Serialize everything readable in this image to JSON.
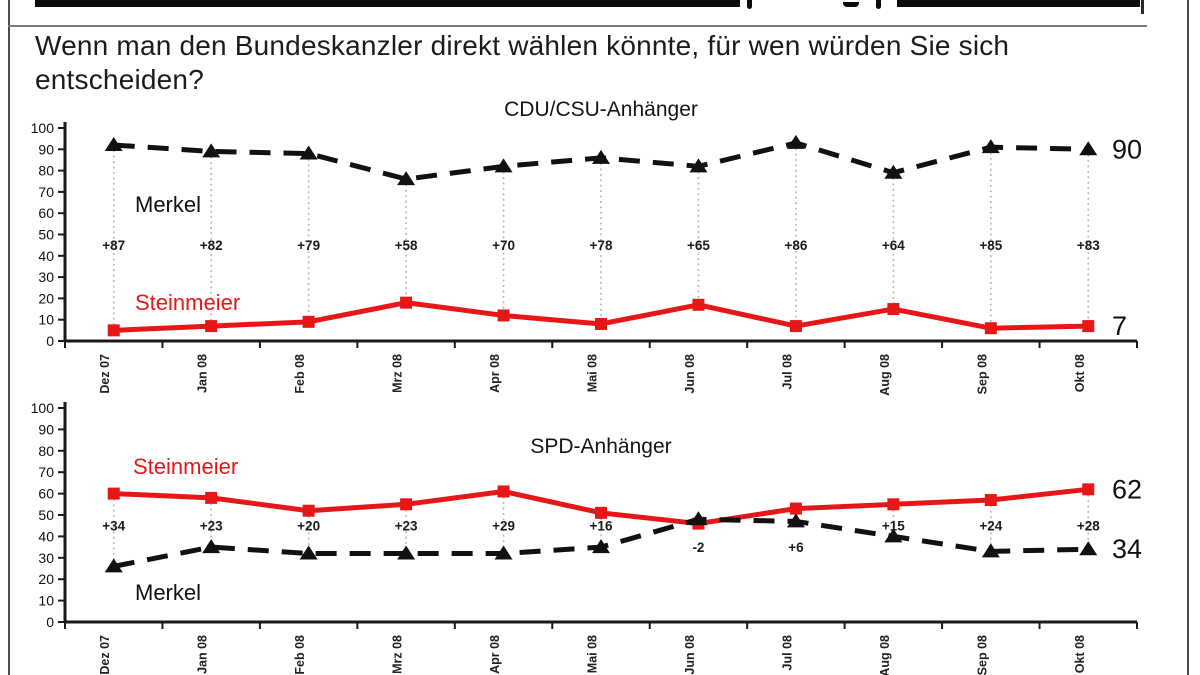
{
  "header": {
    "question": "Wenn man den Bundeskanzler direkt wählen könnte, für wen würden Sie sich entscheiden?"
  },
  "colors": {
    "steinmeier_red": "#e81717",
    "merkel_black": "#111111",
    "guide_gray": "#b3b3b3",
    "axis_black": "#1a1a1a"
  },
  "chart_data": [
    {
      "id": "cdu-csu",
      "type": "line",
      "title": "CDU/CSU-Anhänger",
      "categories": [
        "Dez 07",
        "Jan 08",
        "Feb 08",
        "Mrz 08",
        "Apr 08",
        "Mai 08",
        "Jun 08",
        "Jul 08",
        "Aug 08",
        "Sep 08",
        "Okt 08"
      ],
      "ylim": [
        0,
        100
      ],
      "yticks": [
        0,
        10,
        20,
        30,
        40,
        50,
        60,
        70,
        80,
        90,
        100
      ],
      "grid": false,
      "legend": "inline-labels",
      "series": [
        {
          "name": "Merkel",
          "color": "#111111",
          "line_style": "dashed",
          "marker": "triangle",
          "values": [
            92,
            89,
            88,
            76,
            82,
            86,
            82,
            93,
            79,
            91,
            90
          ],
          "end_label": "90"
        },
        {
          "name": "Steinmeier",
          "color": "#e81717",
          "line_style": "solid",
          "marker": "square",
          "values": [
            5,
            7,
            9,
            18,
            12,
            8,
            17,
            7,
            15,
            6,
            7
          ],
          "end_label": "7"
        }
      ],
      "diff_labels": [
        "+87",
        "+82",
        "+79",
        "+58",
        "+70",
        "+78",
        "+65",
        "+86",
        "+64",
        "+85",
        "+83"
      ]
    },
    {
      "id": "spd",
      "type": "line",
      "title": "SPD-Anhänger",
      "categories": [
        "Dez 07",
        "Jan 08",
        "Feb 08",
        "Mrz 08",
        "Apr 08",
        "Mai 08",
        "Jun 08",
        "Jul 08",
        "Aug 08",
        "Sep 08",
        "Okt 08"
      ],
      "ylim": [
        0,
        100
      ],
      "yticks": [
        0,
        10,
        20,
        30,
        40,
        50,
        60,
        70,
        80,
        90,
        100
      ],
      "grid": false,
      "legend": "inline-labels",
      "series": [
        {
          "name": "Steinmeier",
          "color": "#e81717",
          "line_style": "solid",
          "marker": "square",
          "values": [
            60,
            58,
            52,
            55,
            61,
            51,
            46,
            53,
            55,
            57,
            62
          ],
          "end_label": "62"
        },
        {
          "name": "Merkel",
          "color": "#111111",
          "line_style": "dashed",
          "marker": "triangle",
          "values": [
            26,
            35,
            32,
            32,
            32,
            35,
            48,
            47,
            40,
            33,
            34
          ],
          "end_label": "34"
        }
      ],
      "diff_labels": [
        "+34",
        "+23",
        "+20",
        "+23",
        "+29",
        "+16",
        "-2",
        "+6",
        "+15",
        "+24",
        "+28"
      ]
    }
  ]
}
